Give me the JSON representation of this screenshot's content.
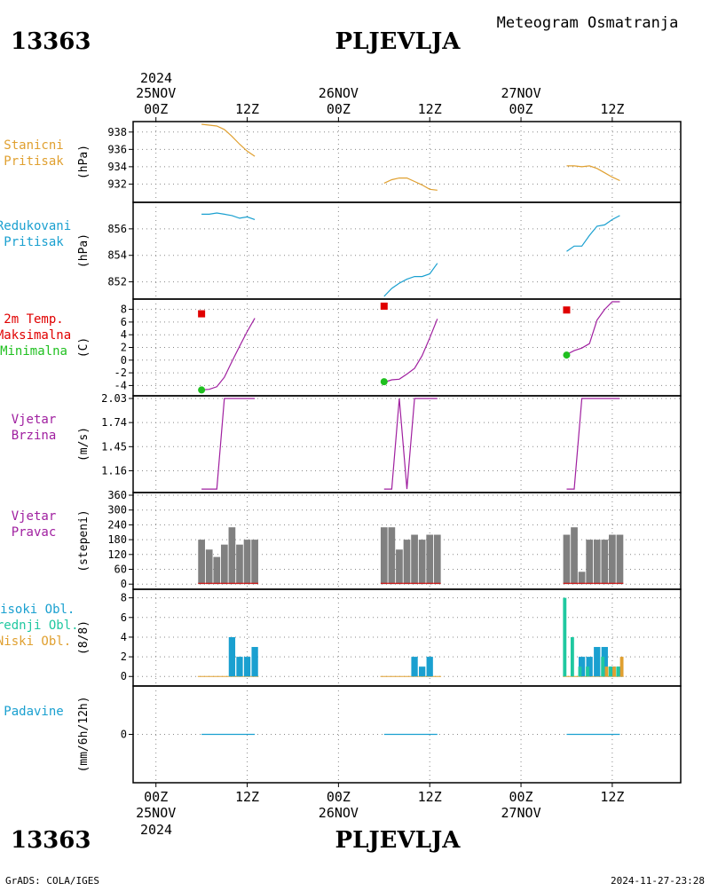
{
  "header": {
    "station_id": "13363",
    "station_name": "PLJEVLJA",
    "product_title": "Meteogram Osmatranja"
  },
  "footer": {
    "credit": "GrADS: COLA/IGES",
    "timestamp": "2024-11-27-23:28"
  },
  "colors": {
    "pressure": "#e0a030",
    "reduced": "#1aa0d0",
    "temp_line": "#a020a0",
    "tmax": "#e00000",
    "tmin": "#20c020",
    "wind": "#a020a0",
    "wind_dir_bar": "#808080",
    "wind_dir_base": "#e00000",
    "high_cloud": "#1aa0d0",
    "mid_cloud": "#20c8a0",
    "low_cloud": "#e0a030",
    "precip": "#1aa0d0"
  },
  "chart_data": {
    "type": "line",
    "x_axis": {
      "top_year": "2024",
      "top_labels": [
        {
          "hours": 0,
          "time": "00Z",
          "date": "25NOV"
        },
        {
          "hours": 12,
          "time": "12Z",
          "date": ""
        },
        {
          "hours": 24,
          "time": "00Z",
          "date": "26NOV"
        },
        {
          "hours": 36,
          "time": "12Z",
          "date": ""
        },
        {
          "hours": 48,
          "time": "00Z",
          "date": "27NOV"
        },
        {
          "hours": 60,
          "time": "12Z",
          "date": ""
        }
      ],
      "bottom_year": "2024",
      "xlim_hours": [
        -3,
        69
      ]
    },
    "panels": [
      {
        "id": "pressure",
        "label_lines": [
          "Stanicni",
          "Pritisak"
        ],
        "unit": "(hPa)",
        "ylim": [
          930.2,
          938.9
        ],
        "yticks": [
          932,
          934,
          936,
          938
        ],
        "segments": [
          {
            "x": [
              6,
              7,
              8,
              9,
              10,
              11,
              12,
              13
            ],
            "y": [
              938.9,
              938.8,
              938.7,
              938.3,
              937.5,
              936.6,
              935.8,
              935.2
            ]
          },
          {
            "x": [
              30,
              31,
              32,
              33,
              34,
              35,
              36,
              37
            ],
            "y": [
              932.1,
              932.5,
              932.7,
              932.7,
              932.3,
              931.9,
              931.4,
              931.3
            ]
          },
          {
            "x": [
              54,
              55,
              56,
              57,
              58,
              59,
              60,
              61
            ],
            "y": [
              934.1,
              934.1,
              934.0,
              934.1,
              933.8,
              933.3,
              932.8,
              932.4
            ]
          }
        ]
      },
      {
        "id": "reduced",
        "label_lines": [
          "Redukovani",
          "Pritisak"
        ],
        "unit": "(hPa)",
        "ylim": [
          850.9,
          857.8
        ],
        "yticks": [
          852,
          854,
          856
        ],
        "segments": [
          {
            "x": [
              6,
              7,
              8,
              9,
              10,
              11,
              12,
              13
            ],
            "y": [
              857.1,
              857.1,
              857.2,
              857.1,
              857.0,
              856.8,
              856.9,
              856.7
            ]
          },
          {
            "x": [
              30,
              31,
              32,
              33,
              34,
              35,
              36,
              37
            ],
            "y": [
              850.9,
              851.5,
              851.9,
              852.2,
              852.4,
              852.4,
              852.6,
              853.4
            ]
          },
          {
            "x": [
              54,
              55,
              56,
              57,
              58,
              59,
              60,
              61
            ],
            "y": [
              854.3,
              854.7,
              854.7,
              855.5,
              856.2,
              856.3,
              856.7,
              857.0
            ]
          }
        ]
      },
      {
        "id": "temperature",
        "label_lines": [
          "2m Temp.",
          "Maksimalna",
          "Minimalna"
        ],
        "unit": "(C)",
        "ylim": [
          -5.2,
          9.2
        ],
        "yticks": [
          -4,
          -2,
          0,
          2,
          4,
          6,
          8
        ],
        "segments": [
          {
            "x": [
              6,
              7,
              8,
              9,
              10,
              11,
              12,
              13
            ],
            "y": [
              -4.7,
              -4.6,
              -4.2,
              -2.7,
              -0.2,
              2.2,
              4.5,
              6.6
            ]
          },
          {
            "x": [
              30,
              31,
              32,
              33,
              34,
              35,
              36,
              37
            ],
            "y": [
              -3.5,
              -3.1,
              -3.0,
              -2.2,
              -1.3,
              0.7,
              3.5,
              6.5
            ]
          },
          {
            "x": [
              54,
              55,
              56,
              57,
              58,
              59,
              60,
              61
            ],
            "y": [
              0.9,
              1.5,
              1.9,
              2.6,
              6.3,
              8.0,
              9.2,
              9.2
            ]
          }
        ],
        "tmax": [
          {
            "x": 6,
            "y": 7.3
          },
          {
            "x": 30,
            "y": 8.5
          },
          {
            "x": 54,
            "y": 7.9
          }
        ],
        "tmin": [
          {
            "x": 6,
            "y": -4.7
          },
          {
            "x": 30,
            "y": -3.4
          },
          {
            "x": 54,
            "y": 0.8
          }
        ]
      },
      {
        "id": "wind_speed",
        "label_lines": [
          "Vjetar",
          "Brzina"
        ],
        "unit": "(m/s)",
        "ylim": [
          0.93,
          2.03
        ],
        "yticks": [
          1.16,
          1.45,
          1.74,
          2.03
        ],
        "segments": [
          {
            "x": [
              6,
              7,
              8,
              9,
              10,
              11,
              12,
              13
            ],
            "y": [
              0.94,
              0.94,
              0.94,
              2.03,
              2.03,
              2.03,
              2.03,
              2.03
            ]
          },
          {
            "x": [
              30,
              31,
              32,
              33,
              34,
              35,
              36,
              37
            ],
            "y": [
              0.94,
              0.94,
              2.03,
              0.94,
              2.03,
              2.03,
              2.03,
              2.03
            ]
          },
          {
            "x": [
              54,
              55,
              56,
              57,
              58,
              59,
              60,
              61
            ],
            "y": [
              0.94,
              0.94,
              2.03,
              2.03,
              2.03,
              2.03,
              2.03,
              2.03
            ]
          }
        ]
      },
      {
        "id": "wind_direction",
        "label_lines": [
          "Vjetar",
          "Pravac"
        ],
        "unit": "(stepeni)",
        "ylim": [
          -10,
          360
        ],
        "yticks": [
          0,
          60,
          120,
          180,
          240,
          300,
          360
        ],
        "bars": {
          "x": [
            6,
            7,
            8,
            9,
            10,
            11,
            12,
            13,
            30,
            31,
            32,
            33,
            34,
            35,
            36,
            37,
            54,
            55,
            56,
            57,
            58,
            59,
            60,
            61
          ],
          "y": [
            180,
            140,
            110,
            160,
            230,
            160,
            180,
            180,
            230,
            230,
            140,
            180,
            200,
            180,
            200,
            200,
            200,
            230,
            50,
            180,
            180,
            180,
            200,
            200
          ]
        }
      },
      {
        "id": "clouds",
        "label_lines": [
          "Visoki Obl.",
          "Srednji Obl.",
          "Niski Obl."
        ],
        "unit": "(8/8)",
        "ylim": [
          -0.7,
          8.6
        ],
        "yticks": [
          0,
          2,
          4,
          6,
          8
        ],
        "high": {
          "x": [
            6,
            7,
            8,
            9,
            10,
            11,
            12,
            13,
            30,
            31,
            32,
            33,
            34,
            35,
            36,
            37,
            54,
            55,
            56,
            57,
            58,
            59,
            60,
            61
          ],
          "y": [
            0,
            0,
            0,
            0,
            4,
            2,
            2,
            3,
            0,
            0,
            0,
            0,
            2,
            1,
            2,
            0,
            0,
            0,
            2,
            2,
            3,
            3,
            1,
            1
          ]
        },
        "mid": {
          "x": [
            6,
            7,
            8,
            9,
            10,
            11,
            12,
            13,
            30,
            31,
            32,
            33,
            34,
            35,
            36,
            37,
            54,
            55,
            56,
            57,
            58,
            59,
            60,
            61
          ],
          "y": [
            0,
            0,
            0,
            0,
            0,
            0,
            0,
            0,
            0,
            0,
            0,
            0,
            0,
            0,
            0,
            0,
            8,
            4,
            1,
            1,
            0,
            2,
            1,
            1
          ]
        },
        "low": {
          "x": [
            6,
            7,
            8,
            9,
            10,
            11,
            12,
            13,
            30,
            31,
            32,
            33,
            34,
            35,
            36,
            37,
            54,
            55,
            56,
            57,
            58,
            59,
            60,
            61
          ],
          "y": [
            0,
            0,
            0,
            0,
            0,
            0,
            0,
            0,
            0,
            0,
            0,
            0,
            0,
            0,
            0,
            0,
            0,
            0,
            0,
            0,
            0,
            1,
            1,
            2
          ]
        }
      },
      {
        "id": "precip",
        "label_lines": [
          "Padavine"
        ],
        "unit": "(mm/6h/12h)",
        "ylim": [
          -1,
          1
        ],
        "yticks": [
          0
        ],
        "segments": [
          {
            "x": [
              6,
              13
            ],
            "y": [
              0,
              0
            ]
          },
          {
            "x": [
              30,
              37
            ],
            "y": [
              0,
              0
            ]
          },
          {
            "x": [
              54,
              61
            ],
            "y": [
              0,
              0
            ]
          }
        ]
      }
    ],
    "grid": true
  }
}
